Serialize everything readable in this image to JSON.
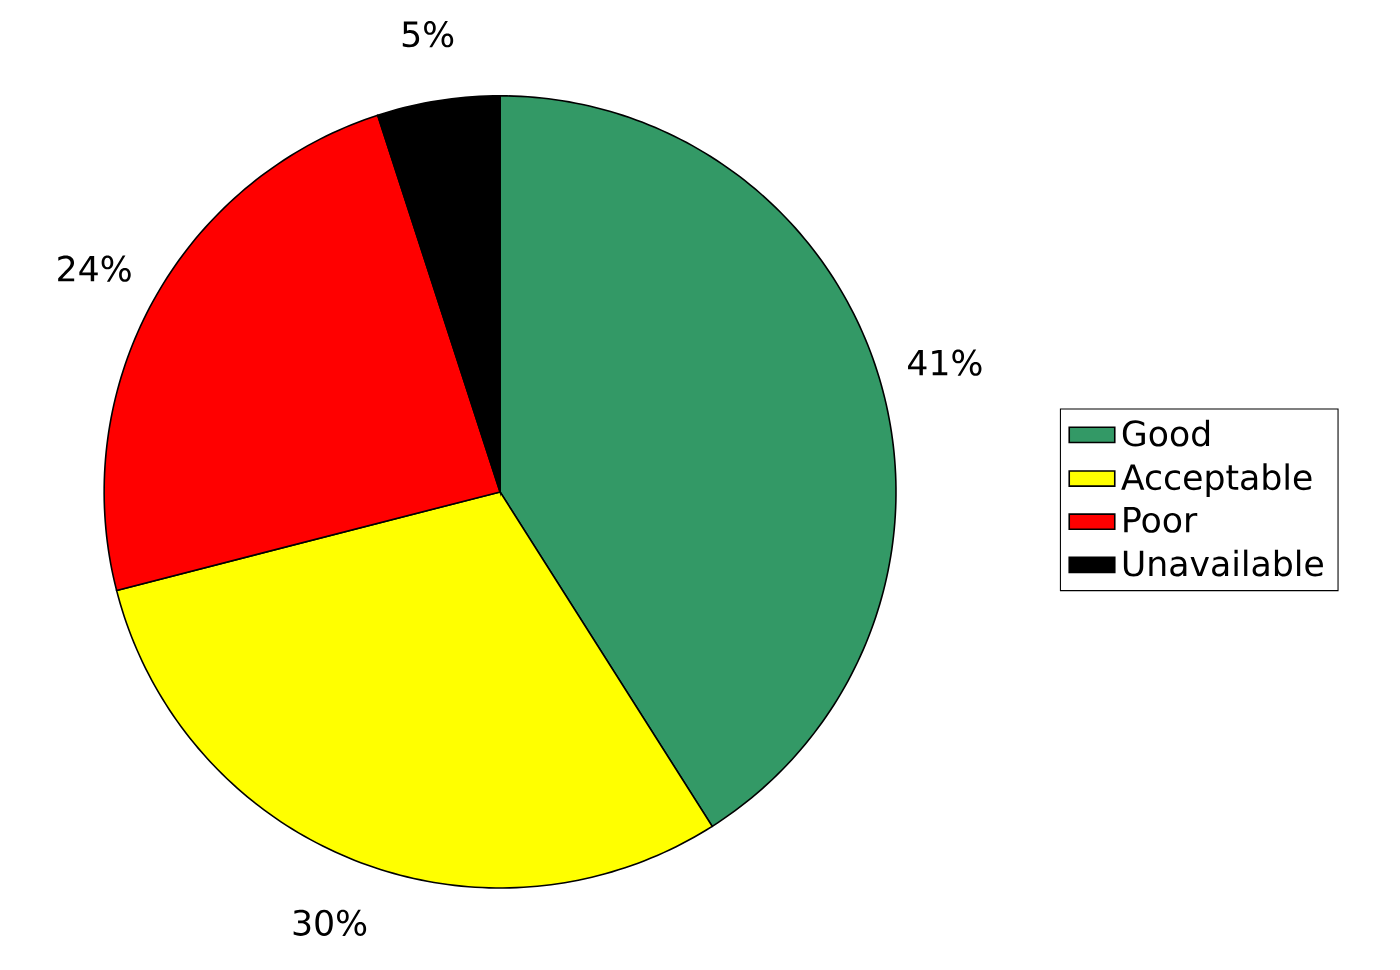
{
  "chart_data": {
    "type": "pie",
    "categories": [
      "Good",
      "Acceptable",
      "Poor",
      "Unavailable"
    ],
    "values": [
      41,
      30,
      24,
      5
    ],
    "value_labels": [
      "41%",
      "30%",
      "24%",
      "5%"
    ],
    "colors": [
      "#339966",
      "#ffff00",
      "#ff0000",
      "#000000"
    ],
    "legend": "right"
  }
}
